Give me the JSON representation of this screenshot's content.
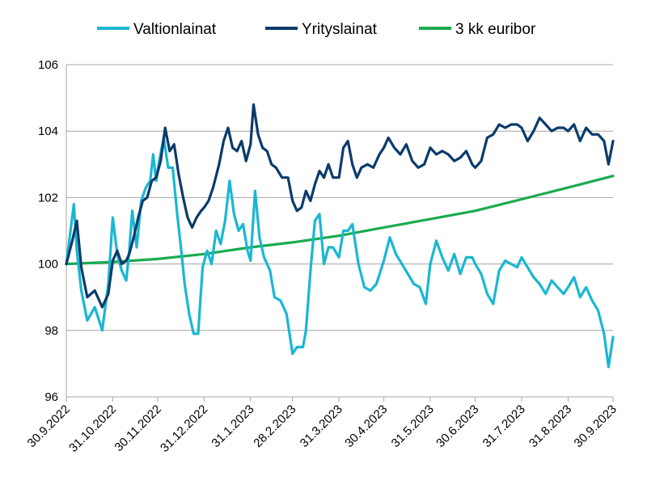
{
  "chart_data": {
    "type": "line",
    "title": "",
    "xlabel": "",
    "ylabel": "",
    "ylim": [
      96,
      106
    ],
    "yticks": [
      "96",
      "98",
      "100",
      "102",
      "104",
      "106"
    ],
    "x_tick_labels": [
      "30.9.2022",
      "31.10.2022",
      "30.11.2022",
      "31.12.2022",
      "31.1.2023",
      "28.2.2023",
      "31.3.2023",
      "30.4.2023",
      "31.5.2023",
      "30.6.2023",
      "31.7.2023",
      "31.8.2023",
      "30.9.2023"
    ],
    "grid": "horizontal",
    "legend_position": "top",
    "series": [
      {
        "name": "Valtionlainat",
        "color": "#1ab7d3",
        "points": [
          [
            "30.9.2022",
            100.0
          ],
          [
            "5.10.2022",
            101.8
          ],
          [
            "7.10.2022",
            100.4
          ],
          [
            "10.10.2022",
            99.2
          ],
          [
            "14.10.2022",
            98.3
          ],
          [
            "19.10.2022",
            98.7
          ],
          [
            "24.10.2022",
            98.0
          ],
          [
            "28.10.2022",
            99.4
          ],
          [
            "31.10.2022",
            101.4
          ],
          [
            "3.11.2022",
            100.3
          ],
          [
            "6.11.2022",
            99.8
          ],
          [
            "9.11.2022",
            99.5
          ],
          [
            "11.11.2022",
            100.4
          ],
          [
            "13.11.2022",
            101.6
          ],
          [
            "16.11.2022",
            100.5
          ],
          [
            "19.11.2022",
            101.9
          ],
          [
            "22.11.2022",
            102.3
          ],
          [
            "25.11.2022",
            102.5
          ],
          [
            "27.11.2022",
            103.3
          ],
          [
            "29.11.2022",
            102.5
          ],
          [
            "1.12.2022",
            103.1
          ],
          [
            "4.12.2022",
            103.8
          ],
          [
            "7.12.2022",
            102.9
          ],
          [
            "10.12.2022",
            102.9
          ],
          [
            "13.12.2022",
            101.5
          ],
          [
            "16.12.2022",
            100.3
          ],
          [
            "18.12.2022",
            99.4
          ],
          [
            "21.12.2022",
            98.5
          ],
          [
            "24.12.2022",
            97.9
          ],
          [
            "27.12.2022",
            97.9
          ],
          [
            "30.12.2022",
            99.9
          ],
          [
            "2.1.2023",
            100.4
          ],
          [
            "5.1.2023",
            100.0
          ],
          [
            "8.1.2023",
            101.0
          ],
          [
            "11.1.2023",
            100.6
          ],
          [
            "14.1.2023",
            101.3
          ],
          [
            "17.1.2023",
            102.5
          ],
          [
            "20.1.2023",
            101.5
          ],
          [
            "23.1.2023",
            101.0
          ],
          [
            "26.1.2023",
            101.2
          ],
          [
            "29.1.2023",
            100.4
          ],
          [
            "31.1.2023",
            100.1
          ],
          [
            "3.2.2023",
            102.2
          ],
          [
            "6.2.2023",
            100.8
          ],
          [
            "9.2.2023",
            100.2
          ],
          [
            "13.2.2023",
            99.8
          ],
          [
            "16.2.2023",
            99.0
          ],
          [
            "20.2.2023",
            98.9
          ],
          [
            "24.2.2023",
            98.5
          ],
          [
            "28.2.2023",
            97.3
          ],
          [
            "3.3.2023",
            97.5
          ],
          [
            "7.3.2023",
            97.5
          ],
          [
            "9.3.2023",
            98.0
          ],
          [
            "12.3.2023",
            99.8
          ],
          [
            "15.3.2023",
            101.3
          ],
          [
            "18.3.2023",
            101.5
          ],
          [
            "21.3.2023",
            100.0
          ],
          [
            "24.3.2023",
            100.5
          ],
          [
            "27.3.2023",
            100.5
          ],
          [
            "31.3.2023",
            100.2
          ],
          [
            "3.4.2023",
            101.0
          ],
          [
            "6.4.2023",
            101.0
          ],
          [
            "9.4.2023",
            101.2
          ],
          [
            "13.4.2023",
            100.0
          ],
          [
            "17.4.2023",
            99.3
          ],
          [
            "21.4.2023",
            99.2
          ],
          [
            "25.4.2023",
            99.4
          ],
          [
            "30.4.2023",
            100.1
          ],
          [
            "4.5.2023",
            100.8
          ],
          [
            "8.5.2023",
            100.3
          ],
          [
            "12.5.2023",
            100.0
          ],
          [
            "16.5.2023",
            99.7
          ],
          [
            "20.5.2023",
            99.4
          ],
          [
            "24.5.2023",
            99.3
          ],
          [
            "28.5.2023",
            98.8
          ],
          [
            "31.5.2023",
            100.0
          ],
          [
            "4.6.2023",
            100.7
          ],
          [
            "8.6.2023",
            100.2
          ],
          [
            "12.6.2023",
            99.8
          ],
          [
            "16.6.2023",
            100.3
          ],
          [
            "20.6.2023",
            99.7
          ],
          [
            "24.6.2023",
            100.2
          ],
          [
            "28.6.2023",
            100.2
          ],
          [
            "30.6.2023",
            100.0
          ],
          [
            "4.7.2023",
            99.7
          ],
          [
            "8.7.2023",
            99.1
          ],
          [
            "12.7.2023",
            98.8
          ],
          [
            "16.7.2023",
            99.8
          ],
          [
            "20.7.2023",
            100.1
          ],
          [
            "24.7.2023",
            100.0
          ],
          [
            "28.7.2023",
            99.9
          ],
          [
            "31.7.2023",
            100.2
          ],
          [
            "4.8.2023",
            99.9
          ],
          [
            "8.8.2023",
            99.6
          ],
          [
            "12.8.2023",
            99.4
          ],
          [
            "16.8.2023",
            99.1
          ],
          [
            "20.8.2023",
            99.5
          ],
          [
            "24.8.2023",
            99.3
          ],
          [
            "28.8.2023",
            99.1
          ],
          [
            "31.8.2023",
            99.3
          ],
          [
            "4.9.2023",
            99.6
          ],
          [
            "8.9.2023",
            99.0
          ],
          [
            "12.9.2023",
            99.3
          ],
          [
            "16.9.2023",
            98.9
          ],
          [
            "20.9.2023",
            98.6
          ],
          [
            "24.9.2023",
            97.9
          ],
          [
            "27.9.2023",
            96.9
          ],
          [
            "30.9.2023",
            97.8
          ]
        ]
      },
      {
        "name": "Yrityslainat",
        "color": "#0b3b6b",
        "points": [
          [
            "30.9.2022",
            100.0
          ],
          [
            "4.10.2022",
            100.7
          ],
          [
            "7.10.2022",
            101.3
          ],
          [
            "10.10.2022",
            99.9
          ],
          [
            "14.10.2022",
            99.0
          ],
          [
            "19.10.2022",
            99.2
          ],
          [
            "24.10.2022",
            98.7
          ],
          [
            "28.10.2022",
            99.1
          ],
          [
            "31.10.2022",
            100.1
          ],
          [
            "3.11.2022",
            100.4
          ],
          [
            "6.11.2022",
            100.0
          ],
          [
            "9.11.2022",
            100.1
          ],
          [
            "11.11.2022",
            100.3
          ],
          [
            "14.11.2022",
            100.8
          ],
          [
            "17.11.2022",
            101.4
          ],
          [
            "20.11.2022",
            101.9
          ],
          [
            "23.11.2022",
            102.0
          ],
          [
            "26.11.2022",
            102.5
          ],
          [
            "29.11.2022",
            102.6
          ],
          [
            "2.12.2022",
            103.1
          ],
          [
            "5.12.2022",
            104.1
          ],
          [
            "8.12.2022",
            103.4
          ],
          [
            "11.12.2022",
            103.6
          ],
          [
            "14.12.2022",
            102.7
          ],
          [
            "17.12.2022",
            102.0
          ],
          [
            "20.12.2022",
            101.4
          ],
          [
            "23.12.2022",
            101.1
          ],
          [
            "26.12.2022",
            101.4
          ],
          [
            "29.12.2022",
            101.6
          ],
          [
            "31.12.2022",
            101.7
          ],
          [
            "3.1.2023",
            101.9
          ],
          [
            "6.1.2023",
            102.3
          ],
          [
            "10.1.2023",
            103.0
          ],
          [
            "13.1.2023",
            103.7
          ],
          [
            "16.1.2023",
            104.1
          ],
          [
            "19.1.2023",
            103.5
          ],
          [
            "22.1.2023",
            103.4
          ],
          [
            "25.1.2023",
            103.7
          ],
          [
            "28.1.2023",
            103.1
          ],
          [
            "31.1.2023",
            103.6
          ],
          [
            "2.2.2023",
            104.8
          ],
          [
            "5.2.2023",
            103.9
          ],
          [
            "8.2.2023",
            103.5
          ],
          [
            "11.2.2023",
            103.4
          ],
          [
            "14.2.2023",
            103.0
          ],
          [
            "17.2.2023",
            102.9
          ],
          [
            "21.2.2023",
            102.6
          ],
          [
            "25.2.2023",
            102.6
          ],
          [
            "28.2.2023",
            101.9
          ],
          [
            "3.3.2023",
            101.6
          ],
          [
            "6.3.2023",
            101.7
          ],
          [
            "9.3.2023",
            102.2
          ],
          [
            "12.3.2023",
            101.9
          ],
          [
            "15.3.2023",
            102.4
          ],
          [
            "18.3.2023",
            102.8
          ],
          [
            "21.3.2023",
            102.6
          ],
          [
            "24.3.2023",
            103.0
          ],
          [
            "27.3.2023",
            102.6
          ],
          [
            "31.3.2023",
            102.6
          ],
          [
            "3.4.2023",
            103.5
          ],
          [
            "6.4.2023",
            103.7
          ],
          [
            "9.4.2023",
            103.0
          ],
          [
            "12.4.2023",
            102.6
          ],
          [
            "15.4.2023",
            102.9
          ],
          [
            "19.4.2023",
            103.0
          ],
          [
            "23.4.2023",
            102.9
          ],
          [
            "27.4.2023",
            103.3
          ],
          [
            "30.4.2023",
            103.5
          ],
          [
            "3.5.2023",
            103.8
          ],
          [
            "7.5.2023",
            103.5
          ],
          [
            "11.5.2023",
            103.3
          ],
          [
            "15.5.2023",
            103.6
          ],
          [
            "19.5.2023",
            103.1
          ],
          [
            "23.5.2023",
            102.9
          ],
          [
            "27.5.2023",
            103.0
          ],
          [
            "31.5.2023",
            103.5
          ],
          [
            "4.6.2023",
            103.3
          ],
          [
            "8.6.2023",
            103.4
          ],
          [
            "12.6.2023",
            103.3
          ],
          [
            "16.6.2023",
            103.1
          ],
          [
            "20.6.2023",
            103.2
          ],
          [
            "24.6.2023",
            103.4
          ],
          [
            "28.6.2023",
            103.0
          ],
          [
            "30.6.2023",
            102.9
          ],
          [
            "4.7.2023",
            103.1
          ],
          [
            "8.7.2023",
            103.8
          ],
          [
            "12.7.2023",
            103.9
          ],
          [
            "16.7.2023",
            104.2
          ],
          [
            "20.7.2023",
            104.1
          ],
          [
            "24.7.2023",
            104.2
          ],
          [
            "28.7.2023",
            104.2
          ],
          [
            "31.7.2023",
            104.1
          ],
          [
            "4.8.2023",
            103.7
          ],
          [
            "8.8.2023",
            104.0
          ],
          [
            "12.8.2023",
            104.4
          ],
          [
            "16.8.2023",
            104.2
          ],
          [
            "20.8.2023",
            104.0
          ],
          [
            "24.8.2023",
            104.1
          ],
          [
            "28.8.2023",
            104.1
          ],
          [
            "31.8.2023",
            104.0
          ],
          [
            "4.9.2023",
            104.2
          ],
          [
            "8.9.2023",
            103.7
          ],
          [
            "12.9.2023",
            104.1
          ],
          [
            "16.9.2023",
            103.9
          ],
          [
            "20.9.2023",
            103.9
          ],
          [
            "24.9.2023",
            103.7
          ],
          [
            "27.9.2023",
            103.0
          ],
          [
            "30.9.2023",
            103.7
          ]
        ]
      },
      {
        "name": "3 kk euribor",
        "color": "#1aab4f",
        "points": [
          [
            "30.9.2022",
            100.0
          ],
          [
            "31.10.2022",
            100.06
          ],
          [
            "30.11.2022",
            100.15
          ],
          [
            "31.12.2022",
            100.3
          ],
          [
            "31.1.2023",
            100.5
          ],
          [
            "28.2.2023",
            100.65
          ],
          [
            "31.3.2023",
            100.85
          ],
          [
            "30.4.2023",
            101.1
          ],
          [
            "31.5.2023",
            101.35
          ],
          [
            "30.6.2023",
            101.6
          ],
          [
            "31.7.2023",
            101.95
          ],
          [
            "31.8.2023",
            102.3
          ],
          [
            "30.9.2023",
            102.65
          ]
        ]
      }
    ]
  }
}
